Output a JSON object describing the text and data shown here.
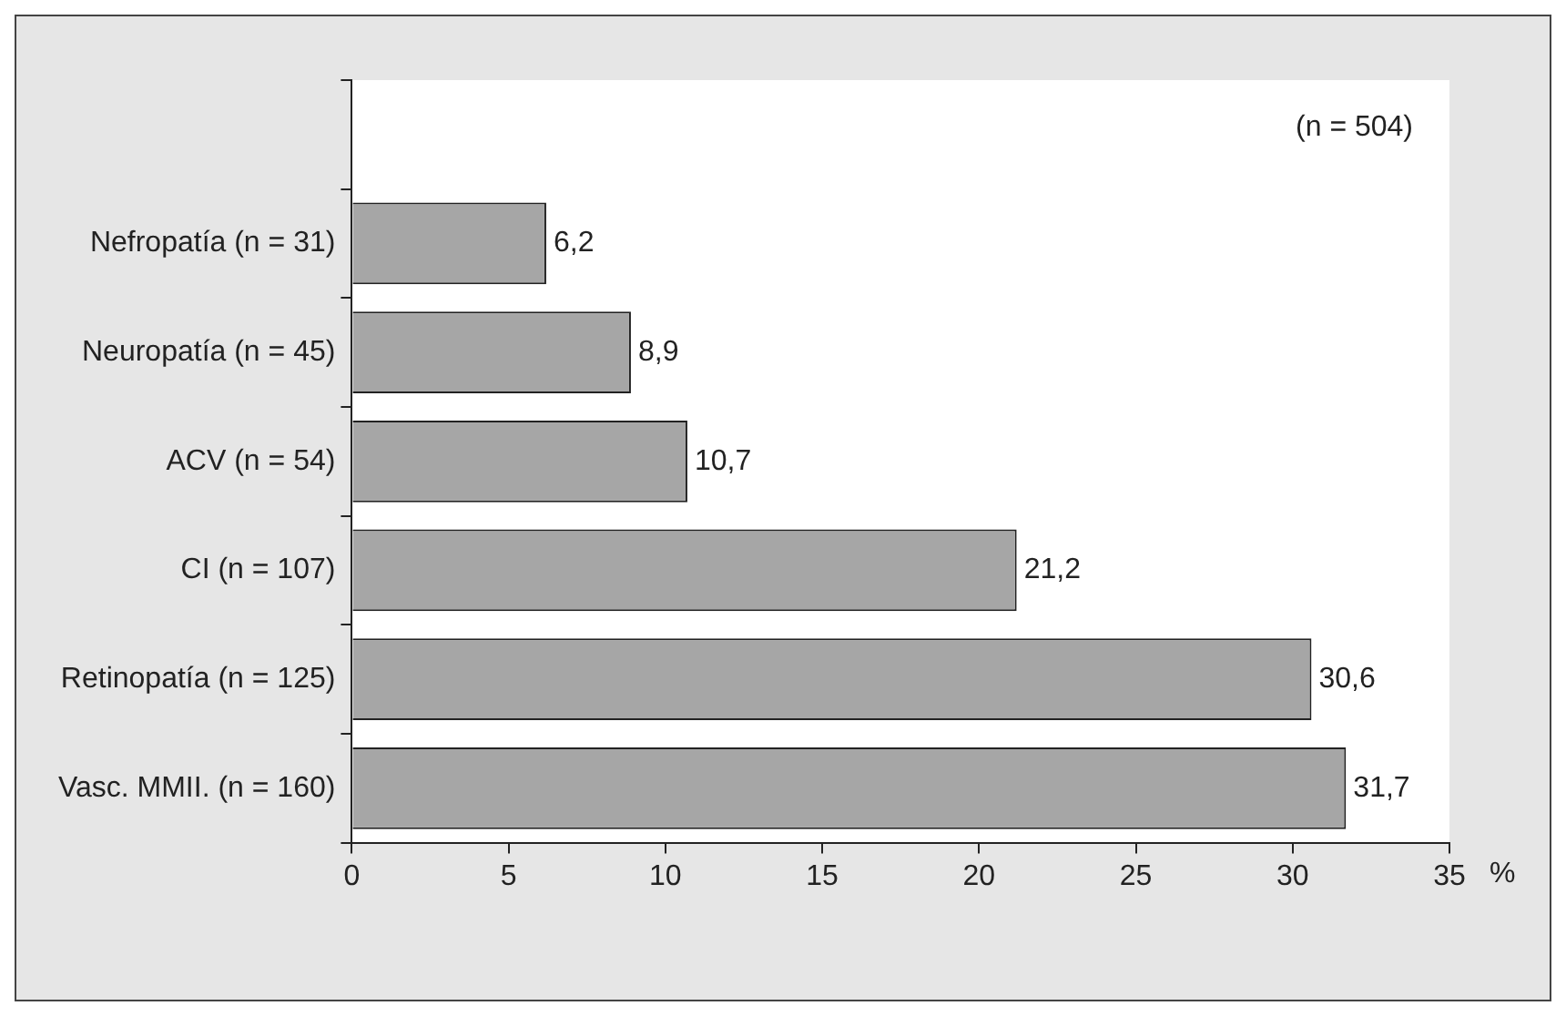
{
  "chart_data": {
    "type": "bar",
    "orientation": "horizontal",
    "categories": [
      null,
      "Nefropatía (n = 31)",
      "Neuropatía (n = 45)",
      "ACV (n = 54)",
      "CI (n = 107)",
      "Retinopatía (n = 125)",
      "Vasc. MMII. (n = 160)"
    ],
    "values": [
      null,
      6.2,
      8.9,
      10.7,
      21.2,
      30.6,
      31.7
    ],
    "value_labels": [
      null,
      "6,2",
      "8,9",
      "10,7",
      "21,2",
      "30,6",
      "31,7"
    ],
    "color": "#a6a6a6",
    "xlim": [
      0,
      35
    ],
    "xticks": [
      0,
      5,
      10,
      15,
      20,
      25,
      30,
      35
    ],
    "xlabel": "%",
    "annotations": [
      "(n = 504)"
    ],
    "grid": false,
    "legend": false
  }
}
